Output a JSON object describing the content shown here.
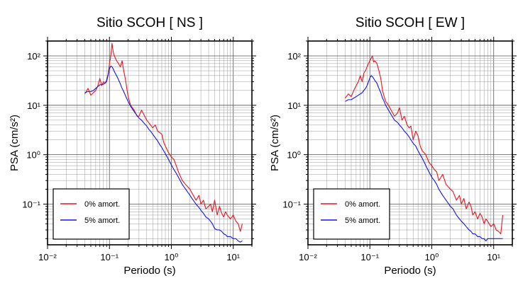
{
  "chart_data": [
    {
      "type": "line",
      "title": "Sitio SCOH [ NS ]",
      "xlabel": "Periodo (s)",
      "ylabel": "PSA (cm/s²)",
      "xscale": "log",
      "yscale": "log",
      "xlim": [
        0.01,
        20
      ],
      "ylim": [
        0.015,
        200
      ],
      "grid": true,
      "legend_position": "bottom-left",
      "x_tick_labels": [
        "10⁻²",
        "10⁻¹",
        "10⁰",
        "10¹"
      ],
      "y_tick_labels": [
        "10⁻¹",
        "10⁰",
        "10¹",
        "10²"
      ],
      "series": [
        {
          "name": "0% amort.",
          "color": "#e8141e",
          "x": [
            0.04,
            0.045,
            0.05,
            0.055,
            0.06,
            0.065,
            0.07,
            0.075,
            0.08,
            0.085,
            0.09,
            0.095,
            0.1,
            0.105,
            0.11,
            0.115,
            0.12,
            0.13,
            0.14,
            0.15,
            0.16,
            0.17,
            0.18,
            0.2,
            0.22,
            0.25,
            0.28,
            0.3,
            0.33,
            0.36,
            0.4,
            0.43,
            0.46,
            0.5,
            0.55,
            0.6,
            0.65,
            0.7,
            0.75,
            0.8,
            0.9,
            1.0,
            1.1,
            1.2,
            1.3,
            1.5,
            1.7,
            2.0,
            2.2,
            2.5,
            2.8,
            3.0,
            3.3,
            3.6,
            4.0,
            4.3,
            4.6,
            5.0,
            5.5,
            6.0,
            6.5,
            7.0,
            7.5,
            8.0,
            9.0,
            10,
            11,
            12,
            13,
            14
          ],
          "y": [
            17,
            22,
            16,
            18,
            20,
            25,
            35,
            25,
            30,
            28,
            30,
            40,
            70,
            100,
            180,
            120,
            100,
            80,
            70,
            60,
            80,
            50,
            35,
            15,
            10,
            8,
            6,
            6,
            8,
            6.5,
            5,
            4.5,
            4,
            3.5,
            4,
            3,
            2.8,
            2.6,
            1.8,
            1.5,
            1.1,
            0.9,
            0.8,
            0.6,
            0.45,
            0.3,
            0.25,
            0.2,
            0.16,
            0.12,
            0.15,
            0.1,
            0.12,
            0.08,
            0.09,
            0.1,
            0.07,
            0.12,
            0.06,
            0.09,
            0.065,
            0.055,
            0.07,
            0.06,
            0.05,
            0.06,
            0.045,
            0.04,
            0.028,
            0.04
          ]
        },
        {
          "name": "5% amort.",
          "color": "#1414e6",
          "x": [
            0.04,
            0.045,
            0.05,
            0.055,
            0.06,
            0.065,
            0.07,
            0.075,
            0.08,
            0.085,
            0.09,
            0.095,
            0.1,
            0.105,
            0.11,
            0.115,
            0.12,
            0.13,
            0.14,
            0.15,
            0.16,
            0.17,
            0.18,
            0.2,
            0.22,
            0.25,
            0.28,
            0.3,
            0.33,
            0.36,
            0.4,
            0.43,
            0.46,
            0.5,
            0.55,
            0.6,
            0.65,
            0.7,
            0.75,
            0.8,
            0.9,
            1.0,
            1.1,
            1.2,
            1.3,
            1.5,
            1.7,
            2.0,
            2.2,
            2.5,
            2.8,
            3.0,
            3.3,
            3.6,
            4.0,
            4.3,
            4.6,
            5.0,
            5.5,
            6.0,
            6.5,
            7.0,
            7.5,
            8.0,
            9.0,
            10,
            11,
            12,
            13,
            14
          ],
          "y": [
            18,
            19,
            19,
            20,
            22,
            24,
            26,
            26,
            27,
            28,
            32,
            42,
            55,
            62,
            60,
            55,
            48,
            40,
            33,
            27,
            22,
            19,
            16,
            12,
            9.5,
            7.5,
            6.2,
            5.5,
            5,
            4.4,
            3.8,
            3.3,
            3,
            2.6,
            2.2,
            1.9,
            1.6,
            1.4,
            1.2,
            1.05,
            0.8,
            0.62,
            0.5,
            0.42,
            0.35,
            0.25,
            0.2,
            0.15,
            0.125,
            0.1,
            0.085,
            0.075,
            0.065,
            0.055,
            0.05,
            0.045,
            0.04,
            0.032,
            0.03,
            0.03,
            0.028,
            0.025,
            0.024,
            0.022,
            0.022,
            0.02,
            0.02,
            0.018,
            0.017,
            0.018
          ]
        }
      ]
    },
    {
      "type": "line",
      "title": "Sitio SCOH [ EW ]",
      "xlabel": "Periodo (s)",
      "ylabel": "PSA (cm/s²)",
      "xscale": "log",
      "yscale": "log",
      "xlim": [
        0.01,
        20
      ],
      "ylim": [
        0.015,
        200
      ],
      "grid": true,
      "legend_position": "bottom-left",
      "x_tick_labels": [
        "10⁻²",
        "10⁻¹",
        "10⁰",
        "10¹"
      ],
      "y_tick_labels": [
        "10⁻¹",
        "10⁰",
        "10¹",
        "10²"
      ],
      "series": [
        {
          "name": "0% amort.",
          "color": "#e8141e",
          "x": [
            0.04,
            0.045,
            0.05,
            0.055,
            0.06,
            0.065,
            0.07,
            0.075,
            0.08,
            0.085,
            0.09,
            0.095,
            0.1,
            0.105,
            0.11,
            0.115,
            0.12,
            0.13,
            0.14,
            0.15,
            0.16,
            0.17,
            0.18,
            0.2,
            0.22,
            0.25,
            0.28,
            0.3,
            0.33,
            0.36,
            0.4,
            0.43,
            0.46,
            0.5,
            0.55,
            0.6,
            0.65,
            0.7,
            0.75,
            0.8,
            0.9,
            1.0,
            1.1,
            1.2,
            1.3,
            1.5,
            1.7,
            2.0,
            2.2,
            2.5,
            2.8,
            3.0,
            3.3,
            3.6,
            4.0,
            4.3,
            4.6,
            5.0,
            5.5,
            6.0,
            6.5,
            7.0,
            7.5,
            8.0,
            9.0,
            10,
            11,
            12,
            13,
            14
          ],
          "y": [
            14,
            17,
            15,
            20,
            25,
            30,
            40,
            30,
            45,
            50,
            60,
            70,
            80,
            90,
            100,
            75,
            80,
            70,
            50,
            35,
            20,
            15,
            12,
            10,
            8,
            6,
            7,
            9,
            5,
            6,
            4,
            3.5,
            3.8,
            2,
            3,
            2.4,
            1.5,
            1.2,
            1.1,
            1.0,
            0.7,
            0.6,
            0.5,
            0.45,
            0.3,
            0.4,
            0.25,
            0.2,
            0.18,
            0.12,
            0.15,
            0.1,
            0.13,
            0.08,
            0.11,
            0.09,
            0.06,
            0.07,
            0.05,
            0.065,
            0.055,
            0.04,
            0.05,
            0.045,
            0.035,
            0.04,
            0.03,
            0.028,
            0.025,
            0.06
          ]
        },
        {
          "name": "5% amort.",
          "color": "#1414e6",
          "x": [
            0.04,
            0.045,
            0.05,
            0.055,
            0.06,
            0.065,
            0.07,
            0.075,
            0.08,
            0.085,
            0.09,
            0.095,
            0.1,
            0.105,
            0.11,
            0.115,
            0.12,
            0.13,
            0.14,
            0.15,
            0.16,
            0.17,
            0.18,
            0.2,
            0.22,
            0.25,
            0.28,
            0.3,
            0.33,
            0.36,
            0.4,
            0.43,
            0.46,
            0.5,
            0.55,
            0.6,
            0.65,
            0.7,
            0.75,
            0.8,
            0.9,
            1.0,
            1.1,
            1.2,
            1.3,
            1.5,
            1.7,
            2.0,
            2.2,
            2.5,
            2.8,
            3.0,
            3.3,
            3.6,
            4.0,
            4.3,
            4.6,
            5.0,
            5.5,
            6.0,
            6.5,
            7.0,
            7.5,
            8.0,
            9.0,
            10,
            11,
            12,
            13,
            14
          ],
          "y": [
            12,
            13,
            13,
            14,
            15,
            16,
            17,
            18,
            20,
            22,
            25,
            30,
            36,
            40,
            38,
            35,
            32,
            28,
            22,
            18,
            14,
            12,
            10,
            8,
            6.5,
            5,
            4.5,
            4,
            3.5,
            3,
            2.6,
            2.3,
            2,
            1.7,
            1.5,
            1.2,
            1.0,
            0.85,
            0.72,
            0.6,
            0.45,
            0.35,
            0.3,
            0.25,
            0.2,
            0.15,
            0.12,
            0.09,
            0.08,
            0.06,
            0.05,
            0.045,
            0.04,
            0.035,
            0.03,
            0.028,
            0.025,
            0.025,
            0.022,
            0.022,
            0.02,
            0.02,
            0.018,
            0.02,
            0.02,
            0.02,
            0.02,
            0.02,
            0.02,
            0.02
          ]
        }
      ]
    }
  ]
}
